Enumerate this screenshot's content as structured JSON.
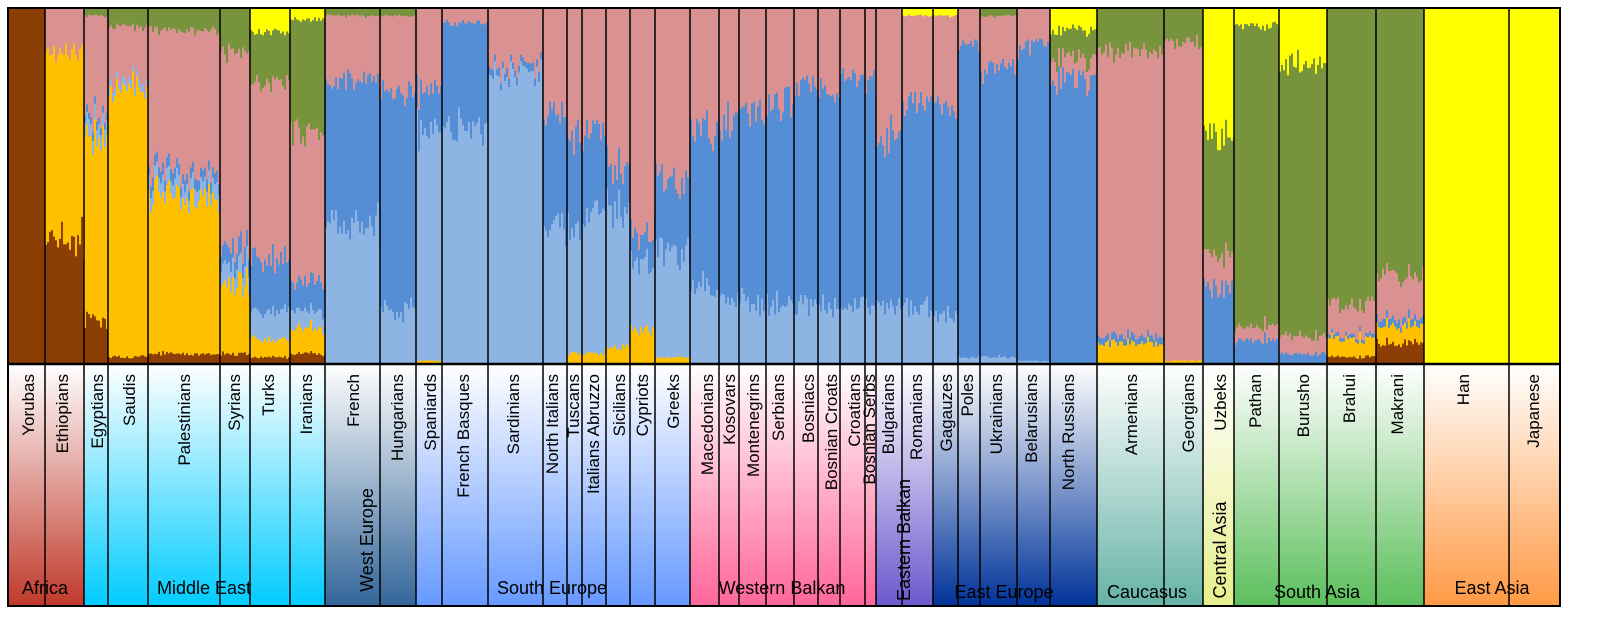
{
  "chart_data": {
    "type": "stacked-bar",
    "colors": {
      "brown": "#8b3f05",
      "orange": "#ffc000",
      "pink": "#d99291",
      "dark_blue": "#558ed5",
      "light_blue": "#8eb4e3",
      "olive": "#77933c",
      "yellow": "#ffff00"
    },
    "components": [
      "brown",
      "orange",
      "light_blue",
      "dark_blue",
      "pink",
      "olive",
      "yellow"
    ],
    "populations": [
      {
        "name": "Yorubas",
        "values": [
          100,
          0,
          0,
          0,
          0,
          0,
          0
        ]
      },
      {
        "name": "Ethiopians",
        "values": [
          36,
          52,
          0,
          0,
          12,
          0,
          0
        ]
      },
      {
        "name": "Egyptians",
        "values": [
          12,
          52,
          4,
          2,
          28,
          2,
          0
        ]
      },
      {
        "name": "Saudis",
        "values": [
          2,
          76,
          2,
          0,
          15,
          5,
          0
        ]
      },
      {
        "name": "Palestinians",
        "values": [
          3,
          44,
          4,
          3,
          40,
          6,
          0
        ]
      },
      {
        "name": "Syrians",
        "values": [
          3,
          20,
          5,
          5,
          55,
          12,
          0
        ]
      },
      {
        "name": "Turks",
        "values": [
          2,
          5,
          8,
          14,
          50,
          14,
          7
        ]
      },
      {
        "name": "Iranians",
        "values": [
          3,
          7,
          5,
          8,
          42,
          32,
          3
        ]
      },
      {
        "name": "French",
        "values": [
          0,
          0,
          40,
          40,
          18,
          2,
          0
        ]
      },
      {
        "name": "Hungarians",
        "values": [
          0,
          0,
          15,
          62,
          21,
          2,
          0
        ]
      },
      {
        "name": "Spaniards",
        "values": [
          0,
          1,
          65,
          11,
          23,
          0,
          0
        ]
      },
      {
        "name": "French Basques",
        "values": [
          0,
          0,
          68,
          28,
          4,
          0,
          0
        ]
      },
      {
        "name": "Sardinians",
        "values": [
          0,
          0,
          82,
          2,
          16,
          0,
          0
        ]
      },
      {
        "name": "North Italians",
        "values": [
          0,
          0,
          38,
          32,
          30,
          0,
          0
        ]
      },
      {
        "name": "Tuscans",
        "values": [
          0,
          3,
          36,
          26,
          35,
          0,
          0
        ]
      },
      {
        "name": "Italians Abruzzo",
        "values": [
          0,
          3,
          38,
          23,
          36,
          0,
          0
        ]
      },
      {
        "name": "Sicilians",
        "values": [
          0,
          5,
          38,
          12,
          45,
          0,
          0
        ]
      },
      {
        "name": "Cypriots",
        "values": [
          0,
          10,
          20,
          8,
          62,
          0,
          0
        ]
      },
      {
        "name": "Greeks",
        "values": [
          0,
          2,
          30,
          20,
          48,
          0,
          0
        ]
      },
      {
        "name": "Macedonians",
        "values": [
          0,
          0,
          22,
          45,
          33,
          0,
          0
        ]
      },
      {
        "name": "Kosovars",
        "values": [
          0,
          0,
          18,
          50,
          32,
          0,
          0
        ]
      },
      {
        "name": "Montenegrins",
        "values": [
          0,
          0,
          17,
          55,
          28,
          0,
          0
        ]
      },
      {
        "name": "Serbians",
        "values": [
          0,
          0,
          17,
          57,
          26,
          0,
          0
        ]
      },
      {
        "name": "Bosniacs",
        "values": [
          0,
          0,
          17,
          62,
          21,
          0,
          0
        ]
      },
      {
        "name": "Bosnian Croats",
        "values": [
          0,
          0,
          16,
          60,
          24,
          0,
          0
        ]
      },
      {
        "name": "Croatians",
        "values": [
          0,
          0,
          16,
          65,
          19,
          0,
          0
        ]
      },
      {
        "name": "Bosnian Serbs",
        "values": [
          0,
          0,
          16,
          63,
          21,
          0,
          0
        ]
      },
      {
        "name": "Bulgarians",
        "values": [
          0,
          0,
          17,
          46,
          37,
          0,
          0
        ]
      },
      {
        "name": "Romanians",
        "values": [
          0,
          0,
          16,
          58,
          24,
          0,
          2
        ]
      },
      {
        "name": "Gagauzes",
        "values": [
          0,
          0,
          14,
          58,
          26,
          0,
          2
        ]
      },
      {
        "name": "Poles",
        "values": [
          0,
          0,
          2,
          88,
          10,
          0,
          0
        ]
      },
      {
        "name": "Ukrainians",
        "values": [
          0,
          0,
          2,
          81,
          15,
          2,
          0
        ]
      },
      {
        "name": "Belarusians",
        "values": [
          0,
          0,
          1,
          88,
          11,
          0,
          0
        ]
      },
      {
        "name": "North Russians",
        "values": [
          0,
          0,
          0,
          80,
          6,
          8,
          6
        ]
      },
      {
        "name": "Armenians",
        "values": [
          0,
          6,
          0,
          2,
          80,
          12,
          0
        ]
      },
      {
        "name": "Georgians",
        "values": [
          0,
          1,
          0,
          0,
          90,
          9,
          0
        ]
      },
      {
        "name": "Uzbeks",
        "values": [
          0,
          0,
          0,
          22,
          10,
          33,
          35
        ]
      },
      {
        "name": "Pathan",
        "values": [
          0,
          0,
          0,
          7,
          4,
          84,
          5
        ]
      },
      {
        "name": "Burusho",
        "values": [
          0,
          0,
          0,
          3,
          5,
          77,
          15
        ]
      },
      {
        "name": "Brahui",
        "values": [
          2,
          5,
          0,
          1,
          8,
          84,
          0
        ]
      },
      {
        "name": "Makrani",
        "values": [
          6,
          5,
          0,
          2,
          12,
          75,
          0
        ]
      },
      {
        "name": "Han",
        "values": [
          0,
          0,
          0,
          0,
          0,
          0,
          100
        ]
      },
      {
        "name": "Japanese",
        "values": [
          0,
          0,
          0,
          0,
          0,
          0,
          100
        ]
      }
    ],
    "regions": [
      {
        "name": "Africa",
        "from": 0,
        "to": 1,
        "top": "#ffffff",
        "bottom": "#c0392b"
      },
      {
        "name": "Middle East",
        "from": 2,
        "to": 7,
        "top": "#ffffff",
        "bottom": "#00ccff"
      },
      {
        "name": "West Europe",
        "from": 8,
        "to": 9,
        "top": "#ffffff",
        "bottom": "#336699"
      },
      {
        "name": "South Europe",
        "from": 10,
        "to": 18,
        "top": "#ffffff",
        "bottom": "#6699ff"
      },
      {
        "name": "Western Balkan",
        "from": 19,
        "to": 26,
        "top": "#ffffff",
        "bottom": "#ff6699"
      },
      {
        "name": "Eastern Balkan",
        "from": 27,
        "to": 28,
        "top": "#ffffff",
        "bottom": "#6a5acd"
      },
      {
        "name": "East Europe",
        "from": 29,
        "to": 33,
        "top": "#ffffff",
        "bottom": "#003399"
      },
      {
        "name": "Caucasus",
        "from": 34,
        "to": 35,
        "top": "#ffffff",
        "bottom": "#66b3a6"
      },
      {
        "name": "Central Asia",
        "from": 36,
        "to": 36,
        "top": "#ffffff",
        "bottom": "#e6ef8c"
      },
      {
        "name": "South Asia",
        "from": 37,
        "to": 40,
        "top": "#ffffff",
        "bottom": "#5cbf5c"
      },
      {
        "name": "East Asia",
        "from": 41,
        "to": 42,
        "top": "#ffffff",
        "bottom": "#ff9944"
      }
    ]
  }
}
